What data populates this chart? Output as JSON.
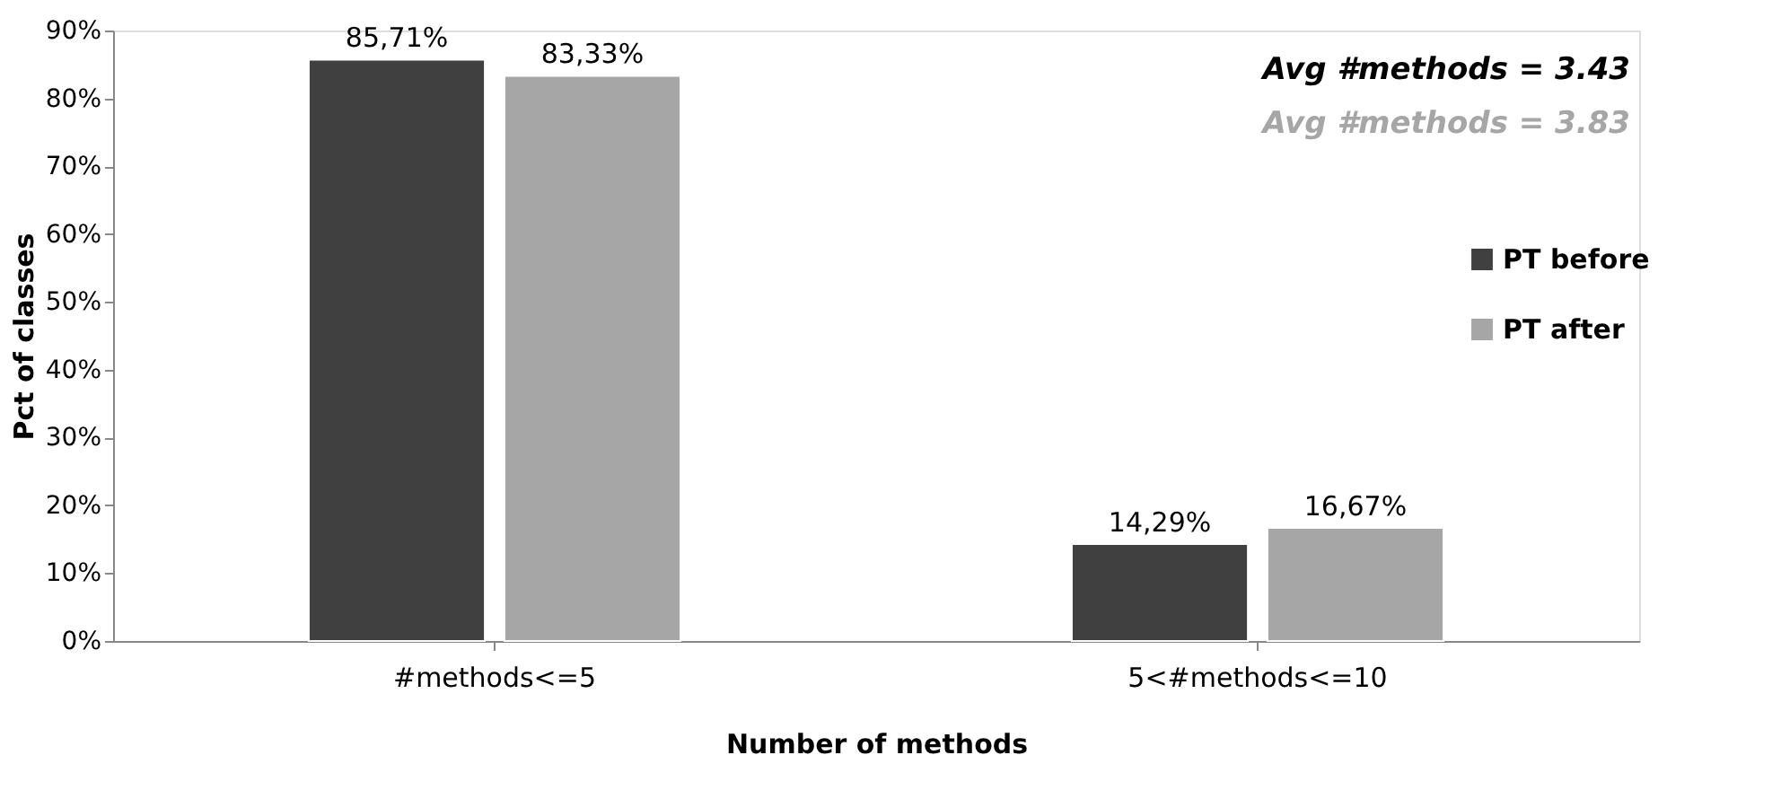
{
  "chart_data": {
    "type": "bar",
    "xlabel": "Number of methods",
    "ylabel": "Pct of classes",
    "categories": [
      "#methods<=5",
      "5<#methods<=10"
    ],
    "series": [
      {
        "name": "PT before",
        "color": "#404040",
        "values": [
          85.71,
          14.29
        ],
        "value_labels": [
          "85,71%",
          "14,29%"
        ]
      },
      {
        "name": "PT after",
        "color": "#a6a6a6",
        "values": [
          83.33,
          16.67
        ],
        "value_labels": [
          "83,33%",
          "16,67%"
        ]
      }
    ],
    "ylim": [
      0,
      90
    ],
    "yticks": [
      {
        "value": 0,
        "label": "0%"
      },
      {
        "value": 10,
        "label": "10%"
      },
      {
        "value": 20,
        "label": "20%"
      },
      {
        "value": 30,
        "label": "30%"
      },
      {
        "value": 40,
        "label": "40%"
      },
      {
        "value": 50,
        "label": "50%"
      },
      {
        "value": 60,
        "label": "60%"
      },
      {
        "value": 70,
        "label": "70%"
      },
      {
        "value": 80,
        "label": "80%"
      },
      {
        "value": 90,
        "label": "90%"
      }
    ],
    "annotations": [
      "Avg #methods = 3.43",
      "Avg #methods = 3.83"
    ],
    "legend": "right",
    "grid": false
  }
}
